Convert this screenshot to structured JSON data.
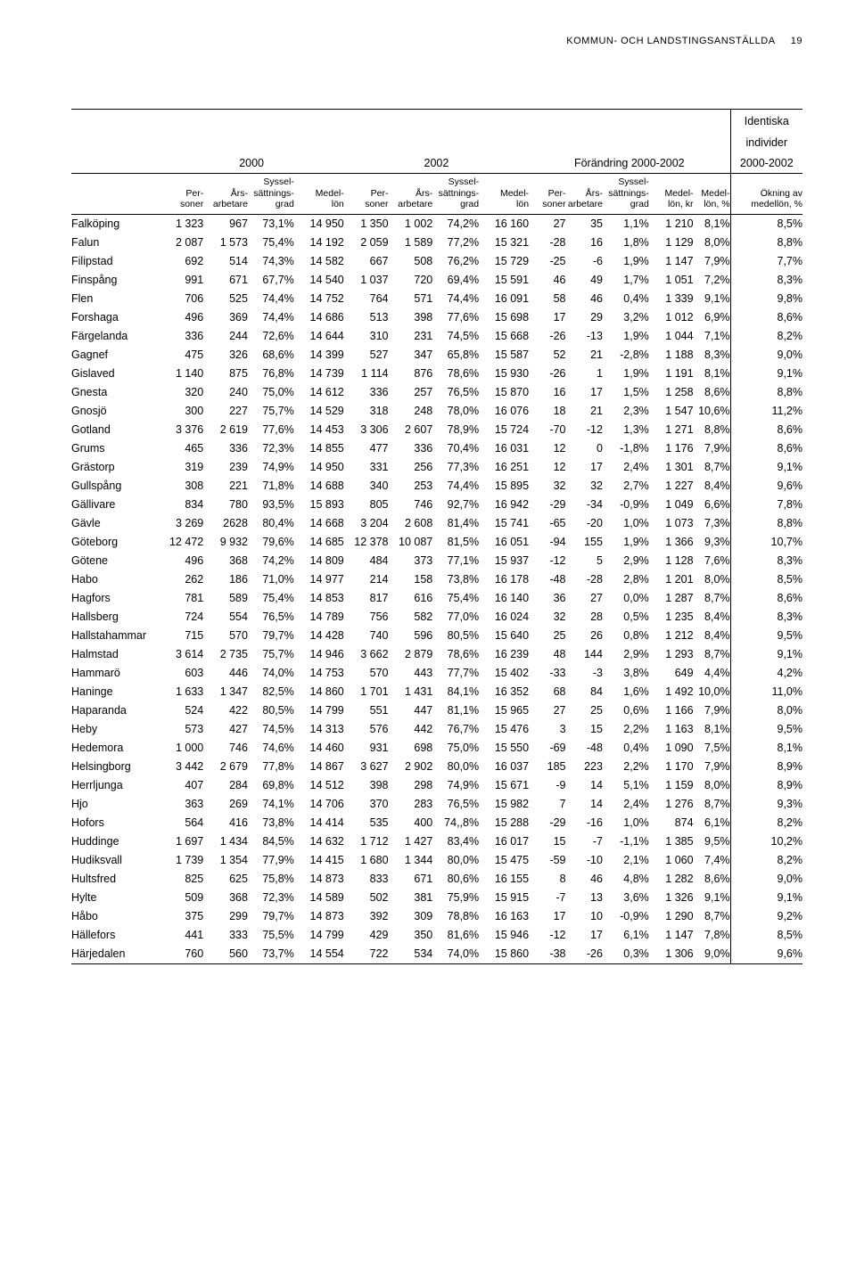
{
  "header": {
    "title": "KOMMUN- OCH LANDSTINGSANSTÄLLDA",
    "page_no": "19"
  },
  "groups": {
    "g2000": "2000",
    "g2002": "2002",
    "gch": "Förändring 2000-2002",
    "gid1": "Identiska",
    "gid2": "individer",
    "gid3": "2000-2002"
  },
  "sub": {
    "per1": "Per-",
    "per2": "soner",
    "ars1": "Års-",
    "ars2": "arbetare",
    "sys1": "Syssel-",
    "sys2": "sättnings-",
    "sys3": "grad",
    "med1": "Medel-",
    "med2": "lön",
    "medkr1": "Medel-",
    "medkr2": "lön, kr",
    "medp1": "Medel-",
    "medp2": "lön, %",
    "ok1": "Ökning av",
    "ok2": "medellön, %"
  },
  "rows": [
    [
      "Falköping",
      "1 323",
      "967",
      "73,1%",
      "14 950",
      "1 350",
      "1 002",
      "74,2%",
      "16 160",
      "27",
      "35",
      "1,1%",
      "1 210",
      "8,1%",
      "8,5%"
    ],
    [
      "Falun",
      "2 087",
      "1 573",
      "75,4%",
      "14 192",
      "2 059",
      "1 589",
      "77,2%",
      "15 321",
      "-28",
      "16",
      "1,8%",
      "1 129",
      "8,0%",
      "8,8%"
    ],
    [
      "Filipstad",
      "692",
      "514",
      "74,3%",
      "14 582",
      "667",
      "508",
      "76,2%",
      "15 729",
      "-25",
      "-6",
      "1,9%",
      "1 147",
      "7,9%",
      "7,7%"
    ],
    [
      "Finspång",
      "991",
      "671",
      "67,7%",
      "14 540",
      "1 037",
      "720",
      "69,4%",
      "15 591",
      "46",
      "49",
      "1,7%",
      "1 051",
      "7,2%",
      "8,3%"
    ],
    [
      "Flen",
      "706",
      "525",
      "74,4%",
      "14 752",
      "764",
      "571",
      "74,4%",
      "16 091",
      "58",
      "46",
      "0,4%",
      "1 339",
      "9,1%",
      "9,8%"
    ],
    [
      "Forshaga",
      "496",
      "369",
      "74,4%",
      "14 686",
      "513",
      "398",
      "77,6%",
      "15 698",
      "17",
      "29",
      "3,2%",
      "1 012",
      "6,9%",
      "8,6%"
    ],
    [
      "Färgelanda",
      "336",
      "244",
      "72,6%",
      "14 644",
      "310",
      "231",
      "74,5%",
      "15 668",
      "-26",
      "-13",
      "1,9%",
      "1 044",
      "7,1%",
      "8,2%"
    ],
    [
      "Gagnef",
      "475",
      "326",
      "68,6%",
      "14 399",
      "527",
      "347",
      "65,8%",
      "15 587",
      "52",
      "21",
      "-2,8%",
      "1 188",
      "8,3%",
      "9,0%"
    ],
    [
      "Gislaved",
      "1 140",
      "875",
      "76,8%",
      "14 739",
      "1 114",
      "876",
      "78,6%",
      "15 930",
      "-26",
      "1",
      "1,9%",
      "1 191",
      "8,1%",
      "9,1%"
    ],
    [
      "Gnesta",
      "320",
      "240",
      "75,0%",
      "14 612",
      "336",
      "257",
      "76,5%",
      "15 870",
      "16",
      "17",
      "1,5%",
      "1 258",
      "8,6%",
      "8,8%"
    ],
    [
      "Gnosjö",
      "300",
      "227",
      "75,7%",
      "14 529",
      "318",
      "248",
      "78,0%",
      "16 076",
      "18",
      "21",
      "2,3%",
      "1 547",
      "10,6%",
      "11,2%"
    ],
    [
      "Gotland",
      "3 376",
      "2 619",
      "77,6%",
      "14 453",
      "3 306",
      "2 607",
      "78,9%",
      "15 724",
      "-70",
      "-12",
      "1,3%",
      "1 271",
      "8,8%",
      "8,6%"
    ],
    [
      "Grums",
      "465",
      "336",
      "72,3%",
      "14 855",
      "477",
      "336",
      "70,4%",
      "16 031",
      "12",
      "0",
      "-1,8%",
      "1 176",
      "7,9%",
      "8,6%"
    ],
    [
      "Grästorp",
      "319",
      "239",
      "74,9%",
      "14 950",
      "331",
      "256",
      "77,3%",
      "16 251",
      "12",
      "17",
      "2,4%",
      "1 301",
      "8,7%",
      "9,1%"
    ],
    [
      "Gullspång",
      "308",
      "221",
      "71,8%",
      "14 688",
      "340",
      "253",
      "74,4%",
      "15 895",
      "32",
      "32",
      "2,7%",
      "1 227",
      "8,4%",
      "9,6%"
    ],
    [
      "Gällivare",
      "834",
      "780",
      "93,5%",
      "15 893",
      "805",
      "746",
      "92,7%",
      "16 942",
      "-29",
      "-34",
      "-0,9%",
      "1 049",
      "6,6%",
      "7,8%"
    ],
    [
      "Gävle",
      "3 269",
      "2628",
      "80,4%",
      "14 668",
      "3 204",
      "2 608",
      "81,4%",
      "15 741",
      "-65",
      "-20",
      "1,0%",
      "1 073",
      "7,3%",
      "8,8%"
    ],
    [
      "Göteborg",
      "12 472",
      "9 932",
      "79,6%",
      "14 685",
      "12 378",
      "10 087",
      "81,5%",
      "16 051",
      "-94",
      "155",
      "1,9%",
      "1 366",
      "9,3%",
      "10,7%"
    ],
    [
      "Götene",
      "496",
      "368",
      "74,2%",
      "14 809",
      "484",
      "373",
      "77,1%",
      "15 937",
      "-12",
      "5",
      "2,9%",
      "1 128",
      "7,6%",
      "8,3%"
    ],
    [
      "Habo",
      "262",
      "186",
      "71,0%",
      "14 977",
      "214",
      "158",
      "73,8%",
      "16 178",
      "-48",
      "-28",
      "2,8%",
      "1 201",
      "8,0%",
      "8,5%"
    ],
    [
      "Hagfors",
      "781",
      "589",
      "75,4%",
      "14 853",
      "817",
      "616",
      "75,4%",
      "16 140",
      "36",
      "27",
      "0,0%",
      "1 287",
      "8,7%",
      "8,6%"
    ],
    [
      "Hallsberg",
      "724",
      "554",
      "76,5%",
      "14 789",
      "756",
      "582",
      "77,0%",
      "16 024",
      "32",
      "28",
      "0,5%",
      "1 235",
      "8,4%",
      "8,3%"
    ],
    [
      "Hallstahammar",
      "715",
      "570",
      "79,7%",
      "14 428",
      "740",
      "596",
      "80,5%",
      "15 640",
      "25",
      "26",
      "0,8%",
      "1 212",
      "8,4%",
      "9,5%"
    ],
    [
      "Halmstad",
      "3 614",
      "2 735",
      "75,7%",
      "14 946",
      "3 662",
      "2 879",
      "78,6%",
      "16 239",
      "48",
      "144",
      "2,9%",
      "1 293",
      "8,7%",
      "9,1%"
    ],
    [
      "Hammarö",
      "603",
      "446",
      "74,0%",
      "14 753",
      "570",
      "443",
      "77,7%",
      "15 402",
      "-33",
      "-3",
      "3,8%",
      "649",
      "4,4%",
      "4,2%"
    ],
    [
      "Haninge",
      "1 633",
      "1 347",
      "82,5%",
      "14 860",
      "1 701",
      "1 431",
      "84,1%",
      "16 352",
      "68",
      "84",
      "1,6%",
      "1 492",
      "10,0%",
      "11,0%"
    ],
    [
      "Haparanda",
      "524",
      "422",
      "80,5%",
      "14 799",
      "551",
      "447",
      "81,1%",
      "15 965",
      "27",
      "25",
      "0,6%",
      "1 166",
      "7,9%",
      "8,0%"
    ],
    [
      "Heby",
      "573",
      "427",
      "74,5%",
      "14 313",
      "576",
      "442",
      "76,7%",
      "15 476",
      "3",
      "15",
      "2,2%",
      "1 163",
      "8,1%",
      "9,5%"
    ],
    [
      "Hedemora",
      "1 000",
      "746",
      "74,6%",
      "14 460",
      "931",
      "698",
      "75,0%",
      "15 550",
      "-69",
      "-48",
      "0,4%",
      "1 090",
      "7,5%",
      "8,1%"
    ],
    [
      "Helsingborg",
      "3 442",
      "2 679",
      "77,8%",
      "14 867",
      "3 627",
      "2 902",
      "80,0%",
      "16 037",
      "185",
      "223",
      "2,2%",
      "1 170",
      "7,9%",
      "8,9%"
    ],
    [
      "Herrljunga",
      "407",
      "284",
      "69,8%",
      "14 512",
      "398",
      "298",
      "74,9%",
      "15 671",
      "-9",
      "14",
      "5,1%",
      "1 159",
      "8,0%",
      "8,9%"
    ],
    [
      "Hjo",
      "363",
      "269",
      "74,1%",
      "14 706",
      "370",
      "283",
      "76,5%",
      "15 982",
      "7",
      "14",
      "2,4%",
      "1 276",
      "8,7%",
      "9,3%"
    ],
    [
      "Hofors",
      "564",
      "416",
      "73,8%",
      "14 414",
      "535",
      "400",
      "74,,8%",
      "15 288",
      "-29",
      "-16",
      "1,0%",
      "874",
      "6,1%",
      "8,2%"
    ],
    [
      "Huddinge",
      "1 697",
      "1 434",
      "84,5%",
      "14 632",
      "1 712",
      "1 427",
      "83,4%",
      "16 017",
      "15",
      "-7",
      "-1,1%",
      "1 385",
      "9,5%",
      "10,2%"
    ],
    [
      "Hudiksvall",
      "1 739",
      "1 354",
      "77,9%",
      "14 415",
      "1 680",
      "1 344",
      "80,0%",
      "15 475",
      "-59",
      "-10",
      "2,1%",
      "1 060",
      "7,4%",
      "8,2%"
    ],
    [
      "Hultsfred",
      "825",
      "625",
      "75,8%",
      "14 873",
      "833",
      "671",
      "80,6%",
      "16 155",
      "8",
      "46",
      "4,8%",
      "1 282",
      "8,6%",
      "9,0%"
    ],
    [
      "Hylte",
      "509",
      "368",
      "72,3%",
      "14 589",
      "502",
      "381",
      "75,9%",
      "15 915",
      "-7",
      "13",
      "3,6%",
      "1 326",
      "9,1%",
      "9,1%"
    ],
    [
      "Håbo",
      "375",
      "299",
      "79,7%",
      "14 873",
      "392",
      "309",
      "78,8%",
      "16 163",
      "17",
      "10",
      "-0,9%",
      "1 290",
      "8,7%",
      "9,2%"
    ],
    [
      "Hällefors",
      "441",
      "333",
      "75,5%",
      "14 799",
      "429",
      "350",
      "81,6%",
      "15 946",
      "-12",
      "17",
      "6,1%",
      "1 147",
      "7,8%",
      "8,5%"
    ],
    [
      "Härjedalen",
      "760",
      "560",
      "73,7%",
      "14 554",
      "722",
      "534",
      "74,0%",
      "15 860",
      "-38",
      "-26",
      "0,3%",
      "1 306",
      "9,0%",
      "9,6%"
    ]
  ]
}
